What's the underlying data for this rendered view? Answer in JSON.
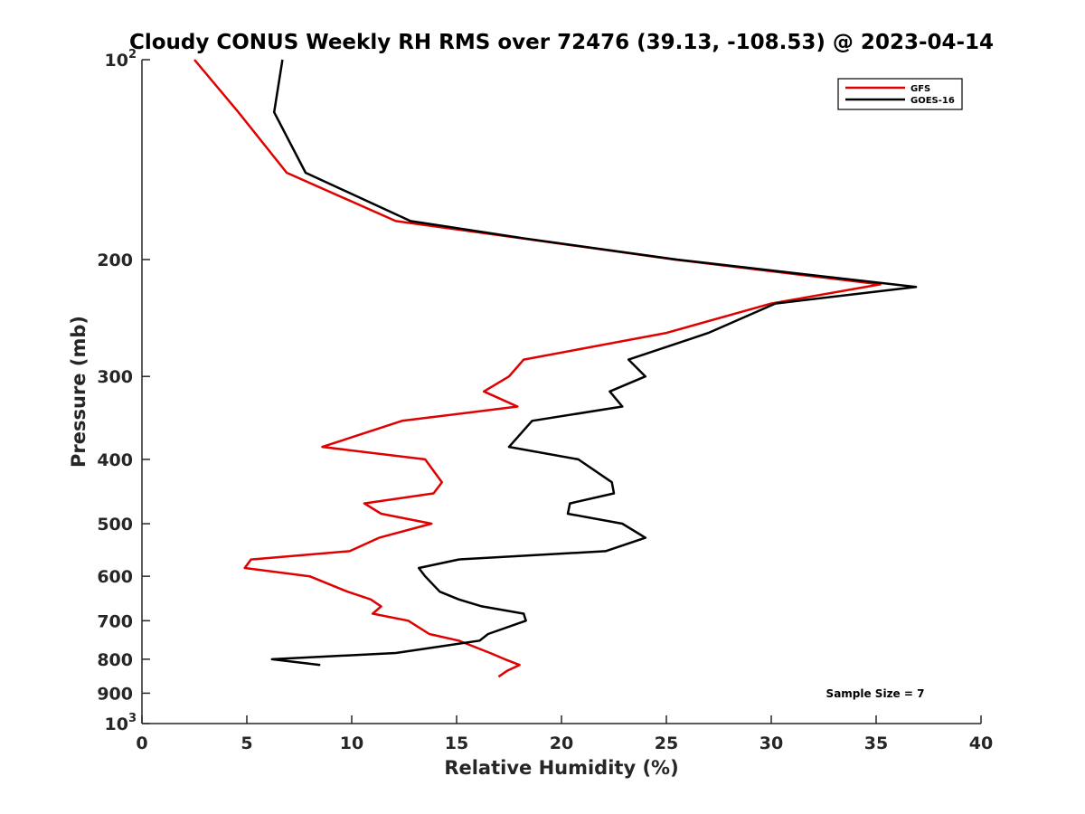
{
  "chart_data": {
    "type": "line",
    "title": "Cloudy CONUS Weekly RH RMS over 72476 (39.13, -108.53) @ 2023-04-14",
    "xlabel": "Relative Humidity (%)",
    "ylabel": "Pressure (mb)",
    "xlim": [
      0,
      40
    ],
    "ylim": [
      100,
      1000
    ],
    "y_scale": "log",
    "y_reversed": true,
    "grid": false,
    "legend_position": "top-right",
    "x_ticks": [
      "0",
      "5",
      "10",
      "15",
      "20",
      "25",
      "30",
      "35",
      "40"
    ],
    "y_ticks": [
      {
        "value": 100,
        "base": "10",
        "exp": "2"
      },
      {
        "value": 200,
        "label": "200"
      },
      {
        "value": 300,
        "label": "300"
      },
      {
        "value": 400,
        "label": "400"
      },
      {
        "value": 500,
        "label": "500"
      },
      {
        "value": 600,
        "label": "600"
      },
      {
        "value": 700,
        "label": "700"
      },
      {
        "value": 800,
        "label": "800"
      },
      {
        "value": 900,
        "label": "900"
      },
      {
        "value": 1000,
        "base": "10",
        "exp": "3"
      }
    ],
    "series": [
      {
        "name": "GFS",
        "color": "#e00000",
        "points": [
          [
            2.5,
            100
          ],
          [
            4.6,
            120
          ],
          [
            6.9,
            148
          ],
          [
            12.1,
            175
          ],
          [
            18.2,
            186
          ],
          [
            25.4,
            200
          ],
          [
            35.2,
            218
          ],
          [
            30.0,
            233
          ],
          [
            25.0,
            258
          ],
          [
            18.2,
            283
          ],
          [
            17.5,
            300
          ],
          [
            16.3,
            316
          ],
          [
            17.9,
            333
          ],
          [
            12.4,
            350
          ],
          [
            8.6,
            383
          ],
          [
            13.5,
            400
          ],
          [
            14.3,
            433
          ],
          [
            13.9,
            450
          ],
          [
            10.6,
            466
          ],
          [
            11.4,
            483
          ],
          [
            13.8,
            500
          ],
          [
            11.3,
            525
          ],
          [
            9.9,
            550
          ],
          [
            5.2,
            566
          ],
          [
            4.9,
            583
          ],
          [
            8.0,
            600
          ],
          [
            9.8,
            633
          ],
          [
            10.9,
            650
          ],
          [
            11.4,
            666
          ],
          [
            11.0,
            683
          ],
          [
            12.7,
            700
          ],
          [
            13.7,
            733
          ],
          [
            15.1,
            750
          ],
          [
            16.6,
            783
          ],
          [
            17.3,
            800
          ],
          [
            18.0,
            816
          ],
          [
            17.4,
            833
          ],
          [
            17.0,
            850
          ]
        ]
      },
      {
        "name": "GOES-16",
        "color": "#000000",
        "points": [
          [
            6.7,
            100
          ],
          [
            6.3,
            120
          ],
          [
            7.8,
            148
          ],
          [
            12.8,
            175
          ],
          [
            18.3,
            186
          ],
          [
            25.5,
            200
          ],
          [
            36.9,
            220
          ],
          [
            30.2,
            233
          ],
          [
            27.0,
            258
          ],
          [
            23.2,
            283
          ],
          [
            24.0,
            300
          ],
          [
            22.3,
            316
          ],
          [
            22.9,
            333
          ],
          [
            18.6,
            350
          ],
          [
            17.5,
            383
          ],
          [
            20.8,
            400
          ],
          [
            22.4,
            433
          ],
          [
            22.5,
            450
          ],
          [
            20.4,
            466
          ],
          [
            20.3,
            483
          ],
          [
            22.9,
            500
          ],
          [
            24.0,
            525
          ],
          [
            22.1,
            550
          ],
          [
            15.1,
            566
          ],
          [
            13.2,
            583
          ],
          [
            13.5,
            600
          ],
          [
            14.2,
            633
          ],
          [
            15.1,
            650
          ],
          [
            16.2,
            666
          ],
          [
            18.2,
            683
          ],
          [
            18.3,
            700
          ],
          [
            16.5,
            733
          ],
          [
            16.1,
            750
          ],
          [
            12.1,
            783
          ],
          [
            6.2,
            800
          ],
          [
            8.5,
            816
          ]
        ]
      }
    ],
    "annotation": "Sample Size = 7"
  }
}
